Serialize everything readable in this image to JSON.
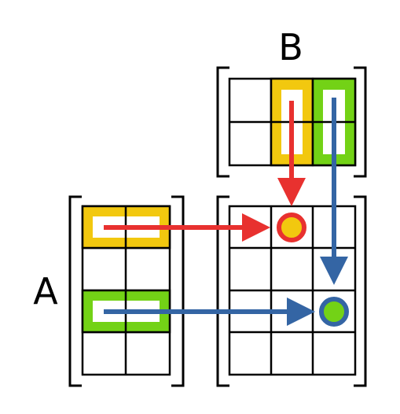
{
  "labels": {
    "matrix_a": "A",
    "matrix_b": "B"
  },
  "matrix_a": {
    "rows": 4,
    "cols": 2,
    "highlight_rows": [
      0,
      2
    ]
  },
  "matrix_b": {
    "rows": 2,
    "cols": 3,
    "highlight_cols": [
      1,
      2
    ]
  },
  "matrix_c": {
    "rows": 4,
    "cols": 3,
    "result_cells": [
      [
        0,
        1
      ],
      [
        2,
        2
      ]
    ]
  },
  "colors": {
    "yellow": "#f2c80f",
    "green": "#73d216",
    "red": "#e8312f",
    "blue": "#3465a4",
    "grid": "#000000"
  }
}
